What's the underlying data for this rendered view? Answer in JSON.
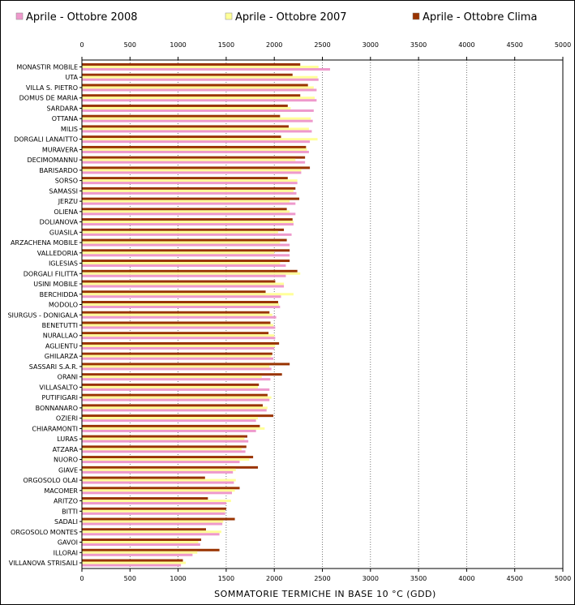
{
  "chart_data": {
    "type": "bar",
    "orientation": "horizontal",
    "xlabel": "SOMMATORIE TERMICHE IN BASE 10 °C (GDD)",
    "xlim": [
      0,
      5000
    ],
    "xticks": [
      0,
      500,
      1000,
      1500,
      2000,
      2500,
      3000,
      3500,
      4000,
      4500,
      5000
    ],
    "grid": "vertical dotted",
    "legend_position": "top",
    "categories": [
      "MONASTIR MOBILE",
      "UTA",
      "VILLA S. PIETRO",
      "DOMUS DE MARIA",
      "SARDARA",
      "OTTANA",
      "MILIS",
      "DORGALI LANAITTO",
      "MURAVERA",
      "DECIMOMANNU",
      "BARISARDO",
      "SORSO",
      "SAMASSI",
      "JERZU",
      "OLIENA",
      "DOLIANOVA",
      "GUASILA",
      "ARZACHENA MOBILE",
      "VALLEDORIA",
      "IGLESIAS",
      "DORGALI FILITTA",
      "USINI MOBILE",
      "BERCHIDDA",
      "MODOLO",
      "SIURGUS - DONIGALA",
      "BENETUTTI",
      "NURALLAO",
      "AGLIENTU",
      "GHILARZA",
      "SASSARI S.A.R.",
      "ORANI",
      "VILLASALTO",
      "PUTIFIGARI",
      "BONNANARO",
      "OZIERI",
      "CHIARAMONTI",
      "LURAS",
      "ATZARA",
      "NUORO",
      "GIAVE",
      "ORGOSOLO OLAI",
      "MACOMER",
      "ARITZO",
      "BITTI",
      "SADALI",
      "ORGOSOLO MONTES",
      "GAVOI",
      "ILLORAI",
      "VILLANOVA STRISAILI"
    ],
    "series": [
      {
        "name": "Aprile - Ottobre Clima",
        "color": "#993300",
        "values": [
          2270,
          2190,
          2350,
          2270,
          2140,
          2060,
          2150,
          2070,
          2330,
          2320,
          2370,
          2140,
          2220,
          2260,
          2130,
          2190,
          2100,
          2130,
          2160,
          2160,
          2240,
          2010,
          1910,
          2040,
          1950,
          1960,
          1940,
          2050,
          1980,
          2160,
          2080,
          1840,
          1930,
          1880,
          1990,
          1850,
          1720,
          1710,
          1780,
          1830,
          1280,
          1640,
          1310,
          1500,
          1590,
          1290,
          1240,
          1430,
          1050
        ]
      },
      {
        "name": "Aprile - Ottobre 2007",
        "color": "#ffff99",
        "values": [
          2460,
          2450,
          2410,
          2420,
          2170,
          2380,
          2360,
          2450,
          2340,
          2220,
          2280,
          2240,
          2200,
          2160,
          2160,
          2200,
          2040,
          2060,
          2000,
          2060,
          2270,
          2100,
          2200,
          2050,
          1980,
          1990,
          2000,
          2010,
          1970,
          1950,
          1870,
          1830,
          1970,
          1930,
          1830,
          1900,
          1690,
          1660,
          1740,
          1600,
          1600,
          1590,
          1550,
          1490,
          1470,
          1450,
          1210,
          1200,
          1080
        ]
      },
      {
        "name": "Aprile - Ottobre 2008",
        "color": "#ee99cc",
        "values": [
          2580,
          2460,
          2440,
          2440,
          2410,
          2400,
          2390,
          2370,
          2360,
          2320,
          2280,
          2240,
          2230,
          2220,
          2220,
          2200,
          2180,
          2160,
          2160,
          2120,
          2120,
          2100,
          2070,
          2060,
          2020,
          2010,
          2010,
          2000,
          1990,
          1970,
          1960,
          1950,
          1950,
          1920,
          1810,
          1810,
          1730,
          1700,
          1640,
          1570,
          1580,
          1560,
          1500,
          1490,
          1460,
          1430,
          1230,
          1150,
          1030
        ]
      }
    ]
  },
  "legend": [
    {
      "label": "Aprile - Ottobre 2008",
      "color": "#ee99cc"
    },
    {
      "label": "Aprile - Ottobre 2007",
      "color": "#ffff99"
    },
    {
      "label": "Aprile - Ottobre Clima",
      "color": "#993300"
    }
  ]
}
